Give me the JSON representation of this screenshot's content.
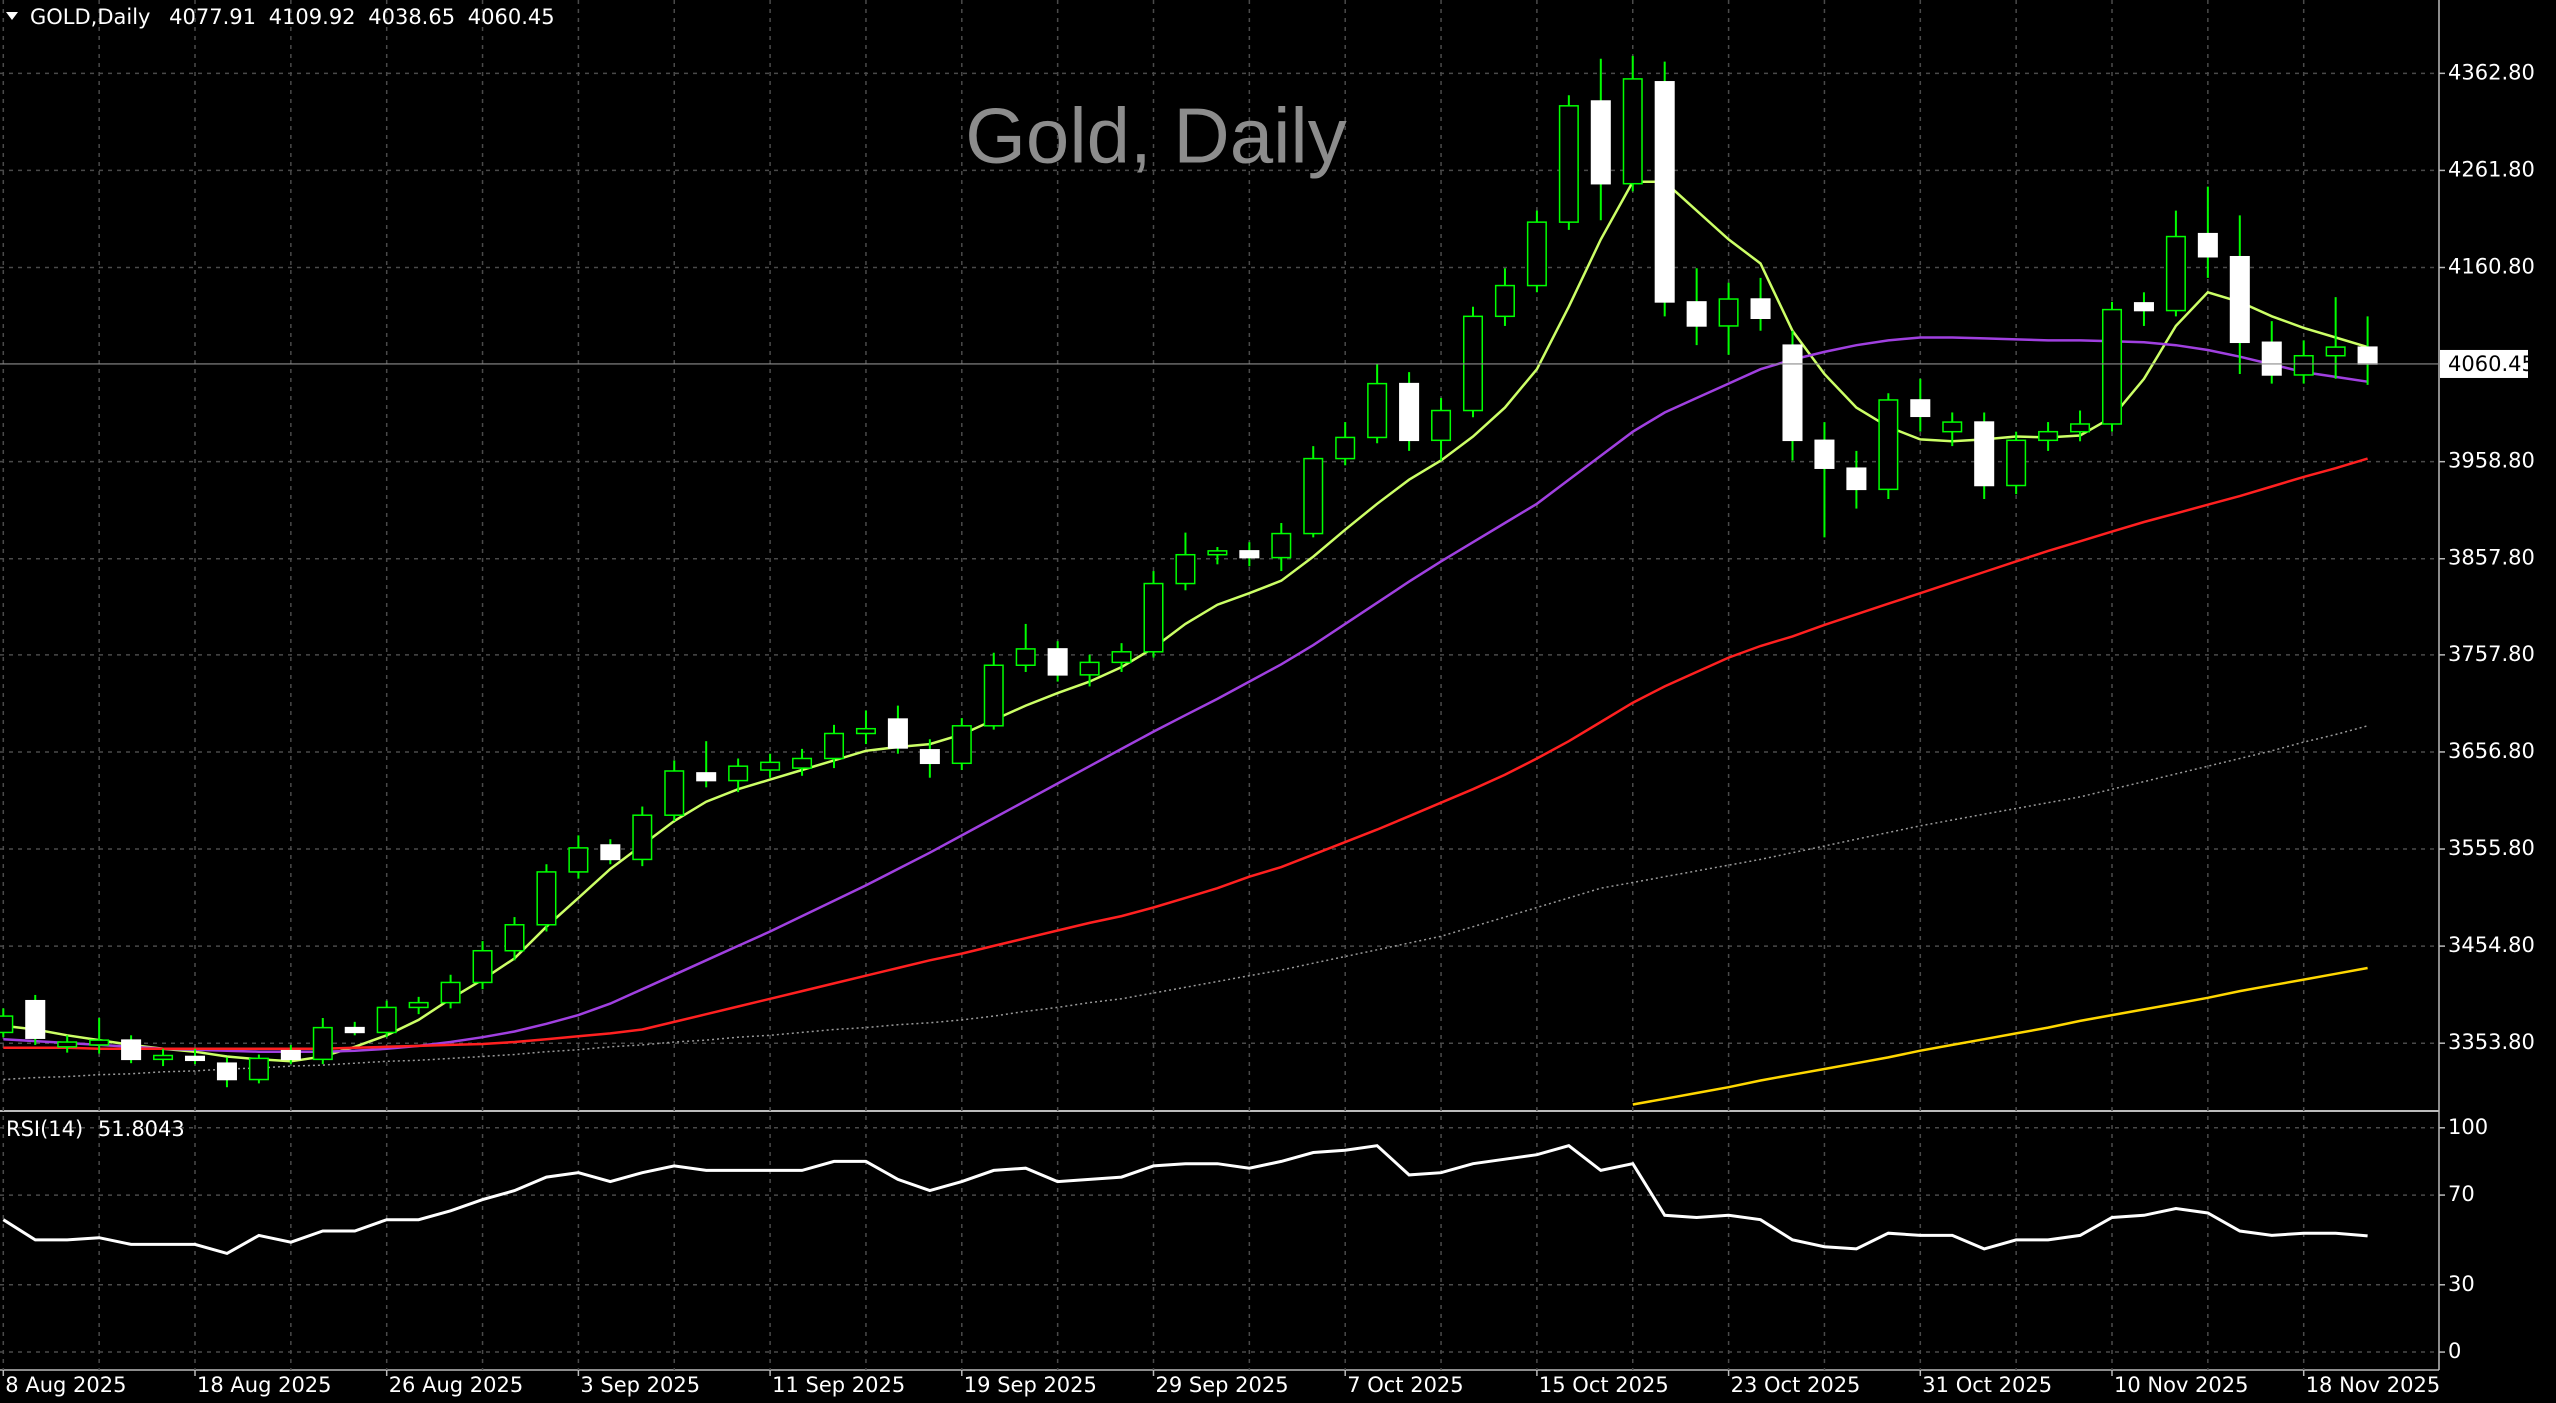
{
  "chart_data": [
    {
      "type": "candlestick",
      "title": "Gold, Daily",
      "symbol": "GOLD,Daily",
      "categories": [
        "8 Aug 2025",
        null,
        null,
        null,
        null,
        null,
        "18 Aug 2025",
        null,
        null,
        null,
        null,
        null,
        "26 Aug 2025",
        null,
        null,
        null,
        null,
        null,
        "3 Sep 2025",
        null,
        null,
        null,
        null,
        null,
        "11 Sep 2025",
        null,
        null,
        null,
        null,
        null,
        "19 Sep 2025",
        null,
        null,
        null,
        null,
        null,
        "29 Sep 2025",
        null,
        null,
        null,
        null,
        null,
        "7 Oct 2025",
        null,
        null,
        null,
        null,
        null,
        "15 Oct 2025",
        null,
        null,
        null,
        null,
        null,
        "23 Oct 2025",
        null,
        null,
        null,
        null,
        null,
        "31 Oct 2025",
        null,
        null,
        null,
        null,
        null,
        "10 Nov 2025",
        null,
        null,
        null,
        null,
        null,
        "18 Nov 2025",
        null,
        null
      ],
      "open": [
        3365,
        3398,
        3350,
        3352,
        3357,
        3337,
        3340,
        3333,
        3316,
        3346,
        3337,
        3370,
        3365,
        3391,
        3396,
        3417,
        3450,
        3477,
        3532,
        3560,
        3545,
        3591,
        3635,
        3627,
        3638,
        3640,
        3650,
        3676,
        3691,
        3659,
        3645,
        3684,
        3747,
        3764,
        3737,
        3750,
        3761,
        3832,
        3862,
        3866,
        3859,
        3884,
        3962,
        3984,
        4040,
        3981,
        4012,
        4110,
        4142,
        4208,
        4334,
        4248,
        4354,
        4125,
        4100,
        4128,
        4080,
        3981,
        3952,
        3930,
        4023,
        3990,
        4000,
        3934,
        3981,
        3990,
        3998,
        4124,
        4116,
        4196,
        4172,
        4083,
        4049,
        4069,
        4077.91
      ],
      "high": [
        3390,
        3404,
        3362,
        3380,
        3362,
        3348,
        3348,
        3339,
        3342,
        3352,
        3380,
        3376,
        3398,
        3402,
        3425,
        3460,
        3485,
        3540,
        3570,
        3566,
        3600,
        3648,
        3668,
        3650,
        3655,
        3660,
        3685,
        3700,
        3705,
        3670,
        3692,
        3760,
        3790,
        3772,
        3758,
        3770,
        3845,
        3885,
        3870,
        3875,
        3895,
        3975,
        4000,
        4060,
        4052,
        4025,
        4120,
        4160,
        4220,
        4340,
        4378,
        4381,
        4375,
        4160,
        4145,
        4150,
        4095,
        4000,
        3970,
        4030,
        4045,
        4010,
        4010,
        3990,
        4000,
        4012,
        4125,
        4135,
        4220,
        4245,
        4215,
        4105,
        4085,
        4130,
        4109.92
      ],
      "low": [
        3360,
        3352,
        3344,
        3343,
        3333,
        3330,
        3332,
        3308,
        3312,
        3332,
        3332,
        3362,
        3360,
        3384,
        3390,
        3410,
        3440,
        3470,
        3525,
        3540,
        3538,
        3585,
        3620,
        3615,
        3630,
        3632,
        3640,
        3665,
        3655,
        3630,
        3638,
        3680,
        3740,
        3730,
        3725,
        3740,
        3755,
        3825,
        3852,
        3850,
        3845,
        3880,
        3955,
        3978,
        3970,
        3960,
        4005,
        4100,
        4135,
        4200,
        4210,
        4240,
        4110,
        4080,
        4070,
        4095,
        3960,
        3880,
        3910,
        3920,
        3990,
        3975,
        3920,
        3925,
        3970,
        3980,
        3990,
        4100,
        4110,
        4150,
        4050,
        4040,
        4040,
        4045,
        4038.65
      ],
      "close": [
        3382,
        3359,
        3355,
        3357,
        3337,
        3341,
        3336,
        3316,
        3338,
        3337,
        3370,
        3365,
        3391,
        3396,
        3417,
        3450,
        3477,
        3532,
        3557,
        3545,
        3591,
        3637,
        3627,
        3642,
        3646,
        3650,
        3676,
        3681,
        3661,
        3645,
        3684,
        3747,
        3764,
        3737,
        3750,
        3761,
        3832,
        3862,
        3866,
        3859,
        3884,
        3962,
        3984,
        4040,
        3981,
        4012,
        4110,
        4142,
        4208,
        4329,
        4248,
        4357,
        4125,
        4100,
        4128,
        4108,
        3981,
        3952,
        3930,
        4023,
        4006,
        4000,
        3934,
        3981,
        3990,
        3998,
        4117,
        4116,
        4193,
        4172,
        4083,
        4049,
        4069,
        4078,
        4060.45
      ],
      "up_fill": "#000000",
      "down_fill": "#ffffff",
      "wick_color": "#00ff00",
      "lines": [
        {
          "color": "#ccff66",
          "values": [
            3372,
            3368,
            3362,
            3357,
            3352,
            3348,
            3345,
            3340,
            3337,
            3335,
            3340,
            3350,
            3362,
            3378,
            3400,
            3420,
            3442,
            3475,
            3505,
            3535,
            3560,
            3585,
            3605,
            3618,
            3628,
            3638,
            3648,
            3658,
            3662,
            3665,
            3675,
            3690,
            3705,
            3718,
            3730,
            3745,
            3765,
            3790,
            3810,
            3822,
            3835,
            3860,
            3888,
            3915,
            3940,
            3960,
            3985,
            4015,
            4055,
            4120,
            4190,
            4250,
            4250,
            4220,
            4190,
            4165,
            4095,
            4050,
            4015,
            3995,
            3982,
            3980,
            3982,
            3985,
            3984,
            3986,
            4005,
            4045,
            4100,
            4135,
            4125,
            4110,
            4098,
            4088,
            4078
          ]
        },
        {
          "color": "#a040e0",
          "values": [
            3358,
            3356,
            3354,
            3352,
            3350,
            3348,
            3347,
            3346,
            3345,
            3345,
            3345,
            3346,
            3348,
            3351,
            3355,
            3360,
            3366,
            3374,
            3383,
            3395,
            3410,
            3425,
            3440,
            3455,
            3470,
            3486,
            3502,
            3518,
            3535,
            3552,
            3570,
            3588,
            3606,
            3624,
            3642,
            3660,
            3678,
            3695,
            3712,
            3730,
            3748,
            3768,
            3790,
            3812,
            3834,
            3855,
            3875,
            3895,
            3915,
            3940,
            3965,
            3990,
            4010,
            4025,
            4040,
            4055,
            4065,
            4073,
            4080,
            4085,
            4088,
            4088,
            4087,
            4086,
            4085,
            4085,
            4084,
            4083,
            4080,
            4075,
            4068,
            4060,
            4052,
            4047,
            4042
          ]
        },
        {
          "color": "#ff2020",
          "values": [
            3349,
            3349,
            3349,
            3348,
            3348,
            3348,
            3348,
            3348,
            3348,
            3348,
            3348,
            3349,
            3350,
            3351,
            3352,
            3353,
            3355,
            3358,
            3361,
            3364,
            3368,
            3376,
            3384,
            3392,
            3400,
            3408,
            3416,
            3424,
            3432,
            3440,
            3447,
            3455,
            3463,
            3471,
            3479,
            3486,
            3495,
            3505,
            3515,
            3527,
            3537,
            3550,
            3563,
            3576,
            3590,
            3604,
            3618,
            3633,
            3650,
            3668,
            3688,
            3708,
            3725,
            3740,
            3755,
            3767,
            3777,
            3789,
            3800,
            3811,
            3822,
            3833,
            3844,
            3855,
            3866,
            3876,
            3886,
            3896,
            3905,
            3914,
            3923,
            3933,
            3943,
            3952,
            3962
          ]
        },
        {
          "color": "#9a9a9a",
          "dash": true,
          "values": [
            3316,
            3318,
            3319,
            3321,
            3322,
            3324,
            3325,
            3327,
            3328,
            3330,
            3331,
            3333,
            3335,
            3336,
            3338,
            3340,
            3342,
            3345,
            3347,
            3350,
            3352,
            3355,
            3357,
            3360,
            3362,
            3365,
            3368,
            3370,
            3373,
            3375,
            3378,
            3382,
            3387,
            3391,
            3396,
            3400,
            3406,
            3412,
            3418,
            3424,
            3430,
            3437,
            3444,
            3451,
            3458,
            3465,
            3475,
            3485,
            3495,
            3505,
            3515,
            3521,
            3527,
            3533,
            3539,
            3545,
            3552,
            3559,
            3566,
            3573,
            3580,
            3586,
            3592,
            3598,
            3604,
            3610,
            3618,
            3626,
            3634,
            3642,
            3650,
            3658,
            3667,
            3675,
            3684
          ]
        },
        {
          "color": "#ffd700",
          "values": [
            null,
            null,
            null,
            null,
            null,
            null,
            null,
            null,
            null,
            null,
            null,
            null,
            null,
            null,
            null,
            null,
            null,
            null,
            null,
            null,
            null,
            null,
            null,
            null,
            null,
            null,
            null,
            null,
            null,
            null,
            null,
            null,
            null,
            null,
            null,
            null,
            null,
            null,
            null,
            null,
            null,
            null,
            null,
            null,
            null,
            null,
            null,
            null,
            null,
            null,
            null,
            3290,
            3296,
            3302,
            3308,
            3315,
            3321,
            3327,
            3333,
            3339,
            3346,
            3352,
            3358,
            3364,
            3370,
            3377,
            3383,
            3389,
            3395,
            3401,
            3408,
            3414,
            3420,
            3426,
            3432
          ]
        }
      ],
      "ylim": [
        3284.3,
        4439.1
      ],
      "yticks": [
        {
          "value": 3353.8,
          "label": "3353.80"
        },
        {
          "value": 3454.8,
          "label": "3454.80"
        },
        {
          "value": 3555.8,
          "label": "3555.80"
        },
        {
          "value": 3656.8,
          "label": "3656.80"
        },
        {
          "value": 3757.8,
          "label": "3757.80"
        },
        {
          "value": 3857.8,
          "label": "3857.80"
        },
        {
          "value": 3958.8,
          "label": "3958.80"
        },
        {
          "value": 4160.8,
          "label": "4160.80"
        },
        {
          "value": 4261.8,
          "label": "4261.80"
        },
        {
          "value": 4362.8,
          "label": "4362.80"
        }
      ],
      "grid": true
    },
    {
      "type": "line",
      "series": [
        {
          "name": "RSI(14)",
          "color": "#ffffff",
          "values": [
            59,
            50,
            50,
            51,
            48,
            48,
            48,
            44,
            52,
            49,
            54,
            54,
            59,
            59,
            63,
            68,
            72,
            78,
            80,
            76,
            80,
            83,
            81,
            81,
            81,
            81,
            85,
            85,
            77,
            72,
            76,
            81,
            82,
            76,
            77,
            78,
            83,
            84,
            84,
            82,
            85,
            89,
            90,
            92,
            79,
            80,
            84,
            86,
            88,
            92,
            81,
            84,
            61,
            60,
            61,
            59,
            50,
            47,
            46,
            53,
            52,
            52,
            46,
            50,
            50,
            52,
            60,
            61,
            64,
            62,
            54,
            52,
            53,
            53,
            51.8043
          ]
        }
      ],
      "ylim": [
        -8,
        106.6
      ],
      "yticks": [
        0,
        30,
        70,
        100
      ],
      "grid": true
    }
  ]
}
